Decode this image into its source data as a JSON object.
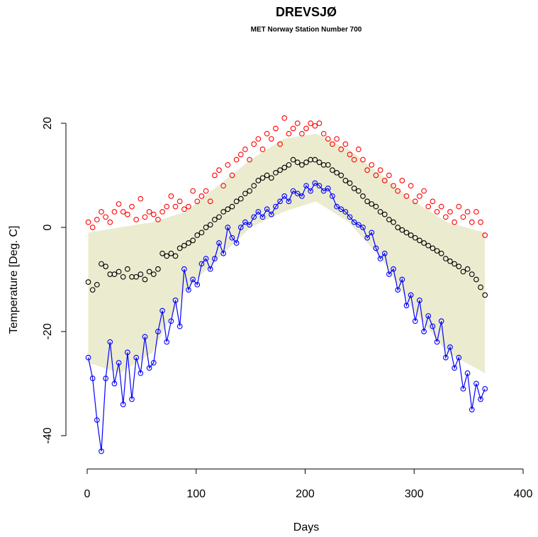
{
  "chart_data": {
    "type": "scatter",
    "title": "DREVSJØ",
    "subtitle": "MET Norway Station Number 700",
    "x_label": "Days",
    "y_label": "Temperature [Deg. C]",
    "xlim": [
      -19.5,
      401.3
    ],
    "ylim": [
      -46.4,
      24
    ],
    "xticks": [
      0,
      100,
      200,
      300,
      400
    ],
    "yticks": [
      -40,
      -20,
      0,
      20
    ],
    "x": [
      1,
      5,
      9,
      13,
      17,
      21,
      25,
      29,
      33,
      37,
      41,
      45,
      49,
      53,
      57,
      61,
      65,
      69,
      73,
      77,
      81,
      85,
      89,
      93,
      97,
      101,
      105,
      109,
      113,
      117,
      121,
      125,
      129,
      133,
      137,
      141,
      145,
      149,
      153,
      157,
      161,
      165,
      169,
      173,
      177,
      181,
      185,
      189,
      193,
      197,
      201,
      205,
      209,
      213,
      217,
      221,
      225,
      229,
      233,
      237,
      241,
      245,
      249,
      253,
      257,
      261,
      265,
      269,
      273,
      277,
      281,
      285,
      289,
      293,
      297,
      301,
      305,
      309,
      313,
      317,
      321,
      325,
      329,
      333,
      337,
      341,
      345,
      349,
      353,
      357,
      361,
      365
    ],
    "band": {
      "color": "#ebebd0",
      "x": [
        1,
        30,
        60,
        90,
        120,
        150,
        180,
        210,
        240,
        270,
        300,
        330,
        365
      ],
      "upper": [
        -1,
        0,
        1,
        3,
        8,
        13,
        17,
        18,
        15,
        10,
        5,
        1,
        -1
      ],
      "lower": [
        -26,
        -28,
        -24,
        -12,
        -6,
        0,
        3,
        5,
        1,
        -6,
        -16,
        -24,
        -28
      ]
    },
    "series": [
      {
        "color": "#ff0000",
        "lines": false,
        "values": [
          1,
          0,
          1.5,
          3,
          2,
          1,
          3,
          4.5,
          3,
          2.5,
          4,
          1.5,
          5.5,
          2,
          3,
          2.5,
          1.5,
          3,
          4,
          6,
          4,
          5,
          3.5,
          4,
          7,
          5,
          6,
          7,
          5,
          10,
          11,
          8,
          12,
          10,
          13,
          14,
          15,
          13,
          16,
          17,
          15,
          18,
          17,
          19,
          16,
          21,
          18,
          19,
          20,
          18,
          19,
          20,
          19.5,
          20,
          18,
          17,
          16,
          17,
          15,
          16,
          14,
          13,
          15,
          13,
          11,
          12,
          10,
          11,
          9,
          10,
          8,
          7,
          9,
          6,
          8,
          5,
          6,
          7,
          4,
          5,
          3,
          4,
          2,
          3,
          1,
          4,
          2,
          3,
          1,
          3,
          1,
          -1.5
        ]
      },
      {
        "color": "#000000",
        "lines": false,
        "values": [
          -10.5,
          -12,
          -11,
          -7,
          -7.5,
          -9,
          -9,
          -8.5,
          -9.5,
          -8,
          -9.5,
          -9.5,
          -9,
          -10,
          -8.5,
          -9,
          -8,
          -5,
          -5.5,
          -5,
          -5.5,
          -4,
          -3.5,
          -3,
          -2.5,
          -1.5,
          -1,
          0,
          0.5,
          1.5,
          2,
          3,
          3.5,
          4,
          5,
          5.5,
          6.5,
          7,
          8,
          9,
          9.5,
          10,
          9.5,
          10.5,
          11,
          11.5,
          12,
          13,
          12.5,
          12,
          12.5,
          13,
          13,
          12.5,
          12,
          12,
          11,
          10.5,
          10,
          9,
          8.5,
          7.5,
          7,
          6,
          5,
          4.5,
          4,
          3,
          2.5,
          1.5,
          1,
          0,
          -0.5,
          -1,
          -1.5,
          -2,
          -2.5,
          -3,
          -3.5,
          -4,
          -4.5,
          -5,
          -6,
          -6.5,
          -7,
          -7.5,
          -8.5,
          -8,
          -9,
          -10,
          -11.5,
          -13
        ]
      },
      {
        "color": "#0000ff",
        "lines": true,
        "values": [
          -25,
          -29,
          -37,
          -43,
          -29,
          -22,
          -30,
          -26,
          -34,
          -24,
          -33,
          -25,
          -28,
          -21,
          -27,
          -26,
          -20,
          -16,
          -22,
          -18,
          -14,
          -19,
          -8,
          -12,
          -10,
          -11,
          -7,
          -6,
          -8,
          -6,
          -3,
          -5,
          0,
          -2,
          -3,
          0,
          1,
          0.5,
          2,
          3,
          2,
          3.5,
          2.5,
          4,
          5,
          6,
          5,
          7,
          6.5,
          6,
          8,
          7,
          8.5,
          8,
          7,
          7.5,
          6,
          4,
          3.5,
          3,
          2,
          1,
          0.5,
          0,
          -2,
          -1,
          -4,
          -6,
          -5,
          -9,
          -8,
          -12,
          -10,
          -15,
          -13,
          -18,
          -14,
          -20,
          -17,
          -19,
          -22,
          -18,
          -25,
          -23,
          -27,
          -25,
          -31,
          -28,
          -35,
          -30,
          -33,
          -31
        ]
      }
    ]
  }
}
